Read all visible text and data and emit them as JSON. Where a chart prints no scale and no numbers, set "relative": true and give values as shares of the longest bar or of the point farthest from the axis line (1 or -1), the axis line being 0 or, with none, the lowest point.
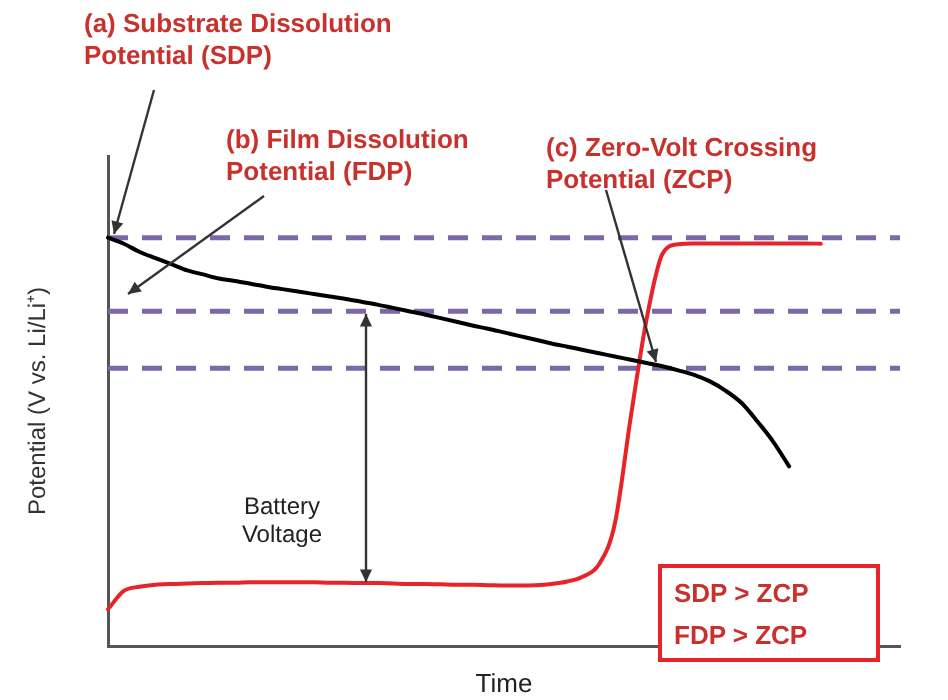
{
  "chart_data": {
    "type": "line",
    "relative": true,
    "xlabel": "Time",
    "ylabel": "Potential (V vs. Li/Li⁺)",
    "categories": [
      null,
      null,
      null,
      null,
      null,
      null,
      null,
      null,
      null,
      null,
      null,
      null,
      null,
      null,
      null,
      null,
      null,
      null,
      null,
      null,
      null,
      null,
      null,
      null,
      null,
      null,
      null,
      null,
      null,
      null,
      null,
      null,
      null,
      null,
      null,
      null,
      null,
      null,
      null,
      null,
      null,
      null,
      null,
      null,
      null,
      null,
      null,
      null,
      null,
      null,
      null
    ],
    "series": [
      {
        "color": "#000000",
        "values": [
          1.0,
          0.985,
          0.965,
          0.95,
          0.935,
          0.92,
          0.91,
          0.9,
          0.894,
          0.887,
          0.88,
          0.874,
          0.868,
          0.862,
          0.856,
          0.85,
          0.843,
          0.836,
          0.828,
          0.82,
          0.812,
          0.803,
          0.794,
          0.785,
          0.777,
          0.768,
          0.759,
          0.75,
          0.741,
          0.733,
          0.725,
          0.717,
          0.709,
          0.701,
          0.693,
          0.685,
          0.675,
          0.664,
          0.648,
          0.625,
          0.595,
          0.55,
          0.5,
          0.44,
          null,
          null,
          null,
          null,
          null,
          null,
          null
        ]
      },
      {
        "color": "#e8232a",
        "values": [
          0.09,
          0.135,
          0.145,
          0.15,
          0.152,
          0.153,
          0.154,
          0.155,
          0.155,
          0.156,
          0.156,
          0.156,
          0.156,
          0.156,
          0.155,
          0.155,
          0.154,
          0.154,
          0.153,
          0.152,
          0.152,
          0.151,
          0.15,
          0.15,
          0.149,
          0.148,
          0.148,
          0.149,
          0.152,
          0.158,
          0.17,
          0.2,
          0.3,
          0.56,
          0.8,
          0.96,
          0.984,
          0.986,
          0.986,
          0.986,
          0.986,
          0.986,
          0.986,
          0.986,
          0.986,
          0.985,
          null,
          null,
          null,
          null,
          null
        ]
      }
    ],
    "ref_lines": [
      {
        "axis": "y",
        "value": 1.0,
        "color": "#7b68a8",
        "line_style": "dashed"
      },
      {
        "axis": "y",
        "value": 0.82,
        "color": "#7b68a8",
        "line_style": "dashed"
      },
      {
        "axis": "y",
        "value": 0.68,
        "color": "#7b68a8",
        "line_style": "dashed"
      }
    ],
    "annotations": [
      "(a) Substrate Dissolution Potential (SDP)",
      "(b) Film Dissolution Potential (FDP)",
      "(c) Zero-Volt Crossing Potential (ZCP)",
      "Battery Voltage",
      "SDP >  ZCP",
      "FDP >  ZCP"
    ],
    "grid": false,
    "legend": false,
    "marker": "none",
    "line_style": "solid"
  }
}
